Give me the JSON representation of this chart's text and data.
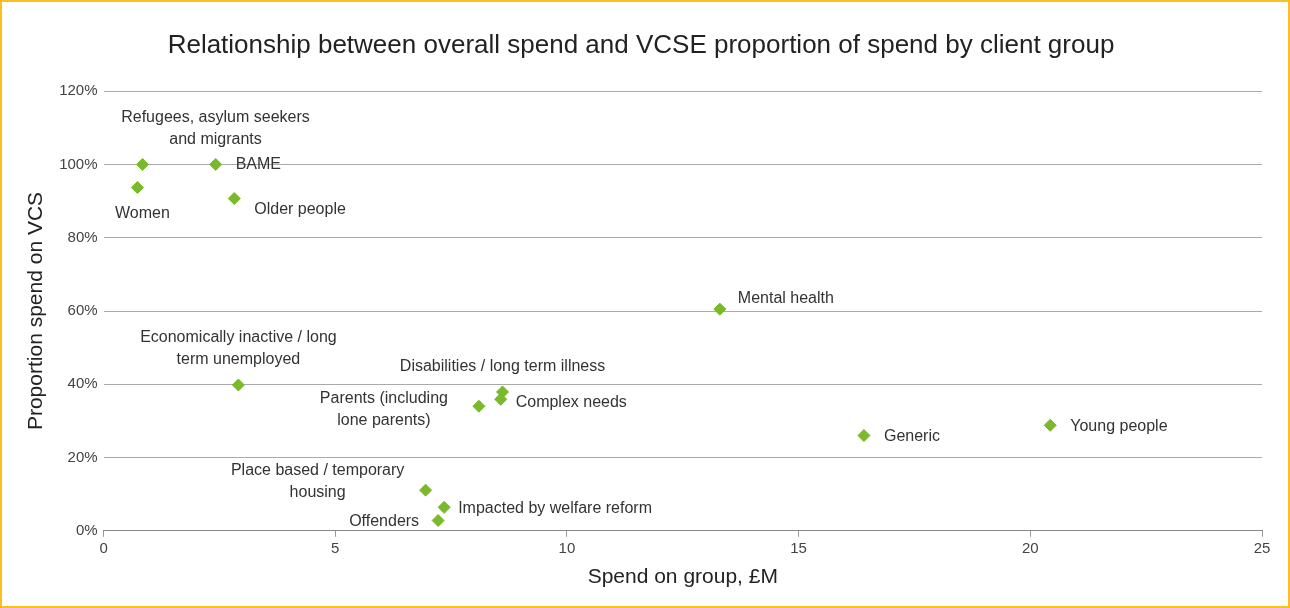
{
  "chart_data": {
    "type": "scatter",
    "title": "Relationship between overall spend and VCSE proportion of spend by client group",
    "xlabel": "Spend on group, £M",
    "ylabel": "Proportion spend on VCS",
    "x": [
      0.84,
      2.42,
      0.73,
      2.82,
      13.3,
      2.91,
      8.61,
      8.57,
      8.1,
      16.41,
      20.43,
      6.95,
      7.35,
      7.22
    ],
    "series": [
      {
        "color": "#7ab929",
        "values": [
          100,
          100,
          93.7,
          90.7,
          60.5,
          39.8,
          37.9,
          35.9,
          34.0,
          26.0,
          28.8,
          11.1,
          6.4,
          2.8
        ]
      }
    ],
    "xlim": [
      0,
      25
    ],
    "xticks": [
      0,
      5,
      10,
      15,
      20,
      25
    ],
    "ylim": [
      0,
      120
    ],
    "yticks": [
      {
        "value": 0,
        "label": "0%"
      },
      {
        "value": 20,
        "label": "20%"
      },
      {
        "value": 40,
        "label": "40%"
      },
      {
        "value": 60,
        "label": "60%"
      },
      {
        "value": 80,
        "label": "80%"
      },
      {
        "value": 100,
        "label": "100%"
      },
      {
        "value": 120,
        "label": "120%"
      }
    ],
    "grid": "y",
    "legend": false,
    "marker": "diamond",
    "annotations": [
      {
        "text": "Refugees, asylum seekers and migrants",
        "x": 0.84,
        "y": 100
      },
      {
        "text": "BAME",
        "x": 2.42,
        "y": 100
      },
      {
        "text": "Women",
        "x": 0.73,
        "y": 93.7
      },
      {
        "text": "Older people",
        "x": 2.82,
        "y": 90.7
      },
      {
        "text": "Mental health",
        "x": 13.3,
        "y": 60.5
      },
      {
        "text": "Economically inactive / long term unemployed",
        "x": 2.91,
        "y": 39.8
      },
      {
        "text": "Disabilities / long term illness",
        "x": 8.61,
        "y": 37.9
      },
      {
        "text": "Complex needs",
        "x": 8.57,
        "y": 35.9
      },
      {
        "text": "Parents (including lone parents)",
        "x": 8.1,
        "y": 34.0
      },
      {
        "text": "Generic",
        "x": 16.41,
        "y": 26.0
      },
      {
        "text": "Young people",
        "x": 20.43,
        "y": 28.8
      },
      {
        "text": "Place based / temporary housing",
        "x": 6.95,
        "y": 11.1
      },
      {
        "text": "Impacted by welfare reform",
        "x": 7.35,
        "y": 6.4
      },
      {
        "text": "Offenders",
        "x": 7.22,
        "y": 2.8
      }
    ]
  }
}
